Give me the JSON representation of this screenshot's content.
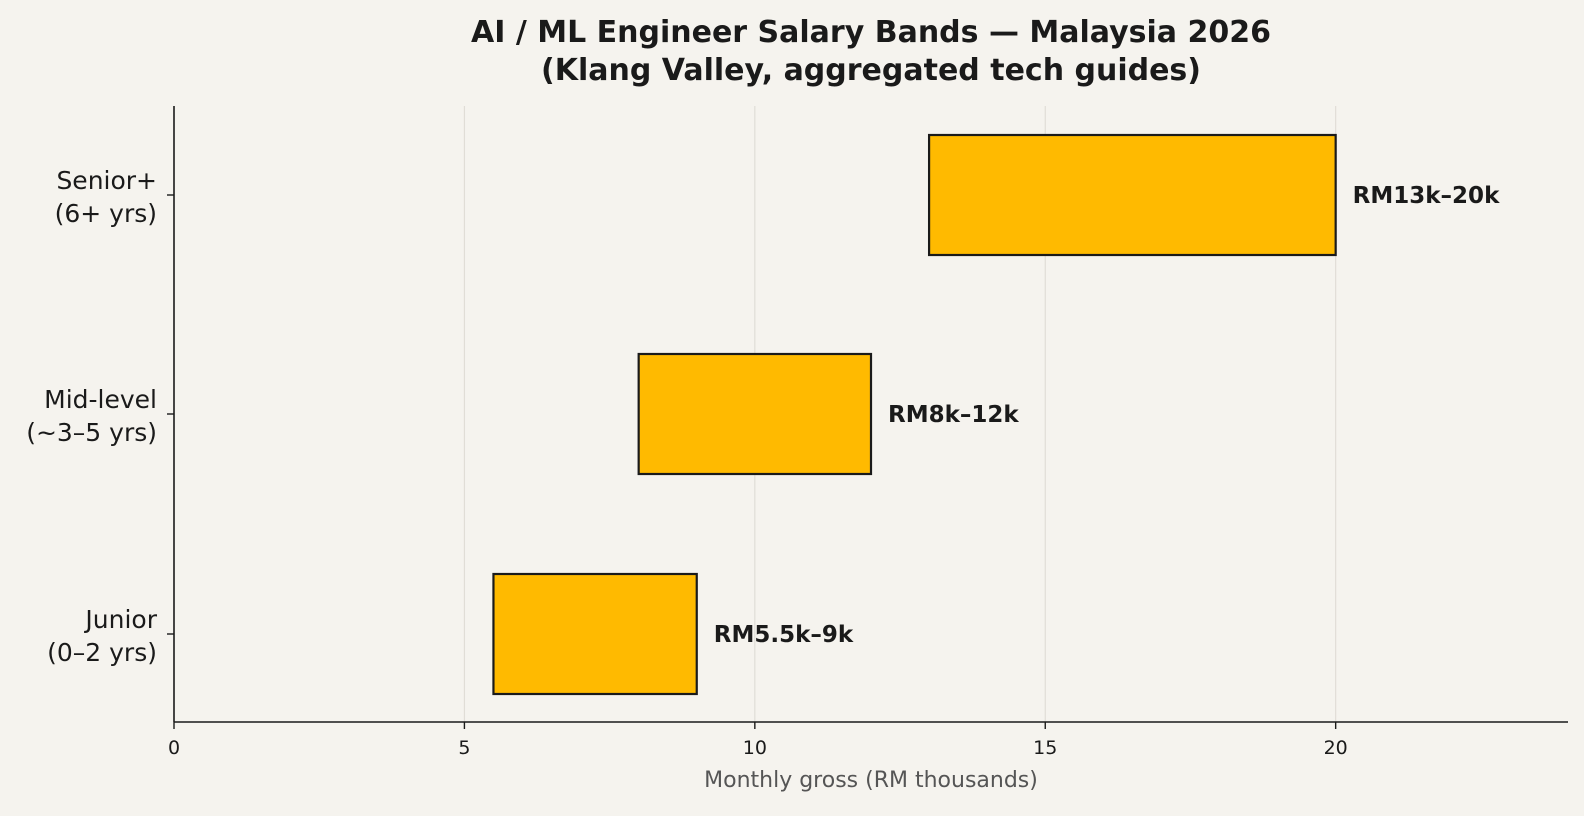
{
  "chart_data": {
    "type": "bar",
    "orientation": "horizontal",
    "subtype": "floating-range",
    "title_lines": [
      "AI / ML Engineer Salary Bands — Malaysia 2026",
      "(Klang Valley, aggregated tech guides)"
    ],
    "xlabel": "Monthly gross (RM thousands)",
    "ylabel": "",
    "xlim": [
      0,
      24
    ],
    "xticks": [
      0,
      5,
      10,
      15,
      20
    ],
    "grid": "x",
    "categories": [
      {
        "line1": "Junior",
        "line2": "(0–2 yrs)"
      },
      {
        "line1": "Mid-level",
        "line2": "(~3–5 yrs)"
      },
      {
        "line1": "Senior+",
        "line2": "(6+ yrs)"
      }
    ],
    "ranges": [
      {
        "low": 5.5,
        "high": 9,
        "label": "RM5.5k–9k"
      },
      {
        "low": 8,
        "high": 12,
        "label": "RM8k–12k"
      },
      {
        "low": 13,
        "high": 20,
        "label": "RM13k–20k"
      }
    ],
    "colors": {
      "bar_fill": "#ffba00",
      "bar_edge": "#1a1a1a",
      "grid": "#e0ddd6",
      "background": "#f5f3ee",
      "axis_label": "#555555"
    }
  }
}
